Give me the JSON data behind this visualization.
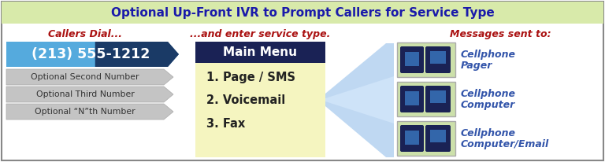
{
  "title": "Optional Up-Front IVR to Prompt Callers for Service Type",
  "title_color": "#1a1aaa",
  "title_bg": "#d8eaaa",
  "bg_color": "#ffffff",
  "col1_header": "Callers Dial...",
  "col2_header": "...and enter service type.",
  "col3_header": "Messages sent to:",
  "header_color": "#aa1111",
  "main_number": "(213) 555-1212",
  "main_number_bg": "#4488bb",
  "main_number_bg2": "#1a3a66",
  "optional_numbers": [
    "Optional Second Number",
    "Optional Third Number",
    "Optional “N”th Number"
  ],
  "menu_title": "Main Menu",
  "menu_title_bg": "#1a2255",
  "menu_title_color": "#ffffff",
  "menu_bg": "#f5f5c0",
  "menu_items": [
    "1. Page / SMS",
    "2. Voicemail",
    "3. Fax"
  ],
  "menu_item_color": "#222222",
  "destinations": [
    [
      "Cellphone",
      "Pager"
    ],
    [
      "Cellphone",
      "Computer"
    ],
    [
      "Cellphone",
      "Computer/Email"
    ]
  ],
  "dest_color": "#3355aa",
  "dest_bg": "#cce0aa",
  "fan_color": "#aaccee",
  "outer_border_color": "#888888",
  "fig_width": 7.68,
  "fig_height": 2.06
}
